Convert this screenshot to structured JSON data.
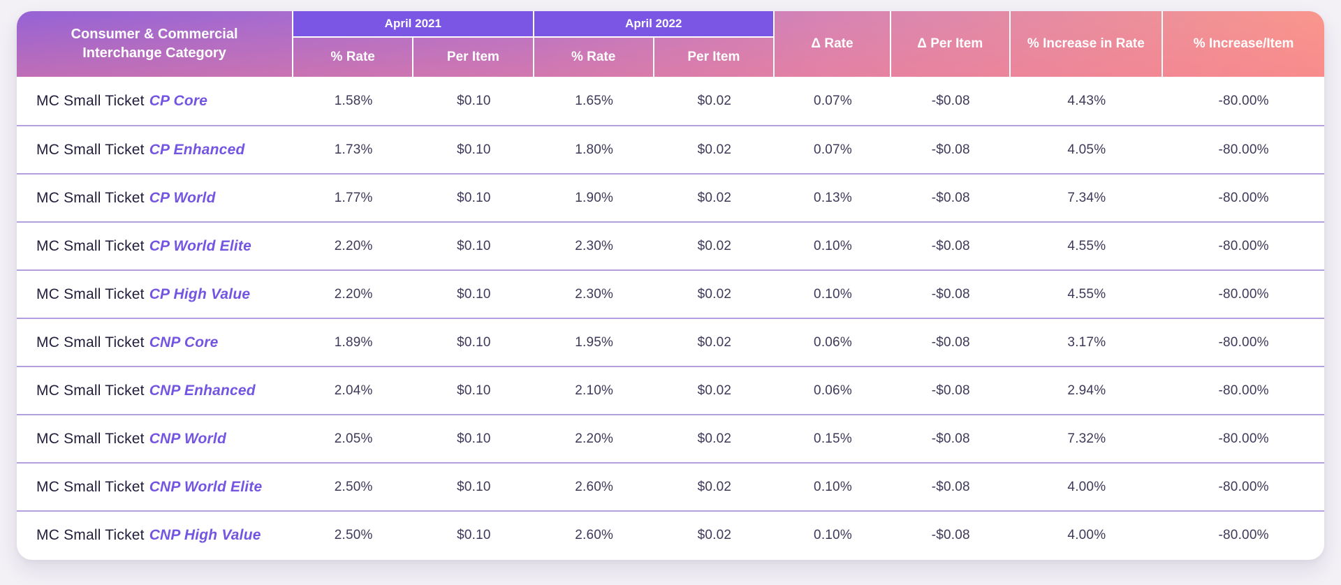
{
  "colors": {
    "page_background": "#f3f0f6",
    "card_background": "#ffffff",
    "header_gradient_start": "#9763d4",
    "header_gradient_end": "#f9968c",
    "banner_purple": "#7b55e4",
    "row_separator": "#b39ede",
    "category_accent": "#7355e2",
    "text_dark": "#221d3b",
    "value_text": "#3f3859"
  },
  "header": {
    "category": "Consumer & Commercial Interchange Category",
    "group_2021": "April 2021",
    "group_2022": "April 2022",
    "sub": [
      "% Rate",
      "Per Item",
      "% Rate",
      "Per Item"
    ],
    "delta_rate": "Δ Rate",
    "delta_per_item": "Δ Per Item",
    "increase_rate": "% Increase in Rate",
    "increase_item": "% Increase/Item"
  },
  "rows": [
    {
      "prefix": "MC Small Ticket",
      "name": "CP Core",
      "values": [
        "1.58%",
        "$0.10",
        "1.65%",
        "$0.02",
        "0.07%",
        "-$0.08",
        "4.43%",
        "-80.00%"
      ]
    },
    {
      "prefix": "MC Small Ticket",
      "name": "CP Enhanced",
      "values": [
        "1.73%",
        "$0.10",
        "1.80%",
        "$0.02",
        "0.07%",
        "-$0.08",
        "4.05%",
        "-80.00%"
      ]
    },
    {
      "prefix": "MC Small Ticket",
      "name": "CP World",
      "values": [
        "1.77%",
        "$0.10",
        "1.90%",
        "$0.02",
        "0.13%",
        "-$0.08",
        "7.34%",
        "-80.00%"
      ]
    },
    {
      "prefix": "MC Small Ticket",
      "name": "CP World Elite",
      "values": [
        "2.20%",
        "$0.10",
        "2.30%",
        "$0.02",
        "0.10%",
        "-$0.08",
        "4.55%",
        "-80.00%"
      ]
    },
    {
      "prefix": "MC Small Ticket",
      "name": "CP High Value",
      "values": [
        "2.20%",
        "$0.10",
        "2.30%",
        "$0.02",
        "0.10%",
        "-$0.08",
        "4.55%",
        "-80.00%"
      ]
    },
    {
      "prefix": "MC Small Ticket",
      "name": "CNP Core",
      "values": [
        "1.89%",
        "$0.10",
        "1.95%",
        "$0.02",
        "0.06%",
        "-$0.08",
        "3.17%",
        "-80.00%"
      ]
    },
    {
      "prefix": "MC Small Ticket",
      "name": "CNP Enhanced",
      "values": [
        "2.04%",
        "$0.10",
        "2.10%",
        "$0.02",
        "0.06%",
        "-$0.08",
        "2.94%",
        "-80.00%"
      ]
    },
    {
      "prefix": "MC Small Ticket",
      "name": "CNP World",
      "values": [
        "2.05%",
        "$0.10",
        "2.20%",
        "$0.02",
        "0.15%",
        "-$0.08",
        "7.32%",
        "-80.00%"
      ]
    },
    {
      "prefix": "MC Small Ticket",
      "name": "CNP World Elite",
      "values": [
        "2.50%",
        "$0.10",
        "2.60%",
        "$0.02",
        "0.10%",
        "-$0.08",
        "4.00%",
        "-80.00%"
      ]
    },
    {
      "prefix": "MC Small Ticket",
      "name": "CNP High Value",
      "values": [
        "2.50%",
        "$0.10",
        "2.60%",
        "$0.02",
        "0.10%",
        "-$0.08",
        "4.00%",
        "-80.00%"
      ]
    }
  ],
  "chart_data": {
    "type": "table",
    "title": "Consumer & Commercial Interchange Category — April 2021 vs April 2022",
    "column_groups": [
      {
        "label": "April 2021",
        "columns": [
          "% Rate",
          "Per Item"
        ]
      },
      {
        "label": "April 2022",
        "columns": [
          "% Rate",
          "Per Item"
        ]
      }
    ],
    "columns": [
      "Consumer & Commercial Interchange Category",
      "April 2021 % Rate",
      "April 2021 Per Item",
      "April 2022 % Rate",
      "April 2022 Per Item",
      "Δ Rate",
      "Δ Per Item",
      "% Increase in Rate",
      "% Increase/Item"
    ],
    "rows": [
      [
        "MC Small Ticket CP Core",
        "1.58%",
        "$0.10",
        "1.65%",
        "$0.02",
        "0.07%",
        "-$0.08",
        "4.43%",
        "-80.00%"
      ],
      [
        "MC Small Ticket CP Enhanced",
        "1.73%",
        "$0.10",
        "1.80%",
        "$0.02",
        "0.07%",
        "-$0.08",
        "4.05%",
        "-80.00%"
      ],
      [
        "MC Small Ticket CP World",
        "1.77%",
        "$0.10",
        "1.90%",
        "$0.02",
        "0.13%",
        "-$0.08",
        "7.34%",
        "-80.00%"
      ],
      [
        "MC Small Ticket CP World Elite",
        "2.20%",
        "$0.10",
        "2.30%",
        "$0.02",
        "0.10%",
        "-$0.08",
        "4.55%",
        "-80.00%"
      ],
      [
        "MC Small Ticket CP High Value",
        "2.20%",
        "$0.10",
        "2.30%",
        "$0.02",
        "0.10%",
        "-$0.08",
        "4.55%",
        "-80.00%"
      ],
      [
        "MC Small Ticket CNP Core",
        "1.89%",
        "$0.10",
        "1.95%",
        "$0.02",
        "0.06%",
        "-$0.08",
        "3.17%",
        "-80.00%"
      ],
      [
        "MC Small Ticket CNP Enhanced",
        "2.04%",
        "$0.10",
        "2.10%",
        "$0.02",
        "0.06%",
        "-$0.08",
        "2.94%",
        "-80.00%"
      ],
      [
        "MC Small Ticket CNP World",
        "2.05%",
        "$0.10",
        "2.20%",
        "$0.02",
        "0.15%",
        "-$0.08",
        "7.32%",
        "-80.00%"
      ],
      [
        "MC Small Ticket CNP World Elite",
        "2.50%",
        "$0.10",
        "2.60%",
        "$0.02",
        "0.10%",
        "-$0.08",
        "4.00%",
        "-80.00%"
      ],
      [
        "MC Small Ticket CNP High Value",
        "2.50%",
        "$0.10",
        "2.60%",
        "$0.02",
        "0.10%",
        "-$0.08",
        "4.00%",
        "-80.00%"
      ]
    ]
  }
}
